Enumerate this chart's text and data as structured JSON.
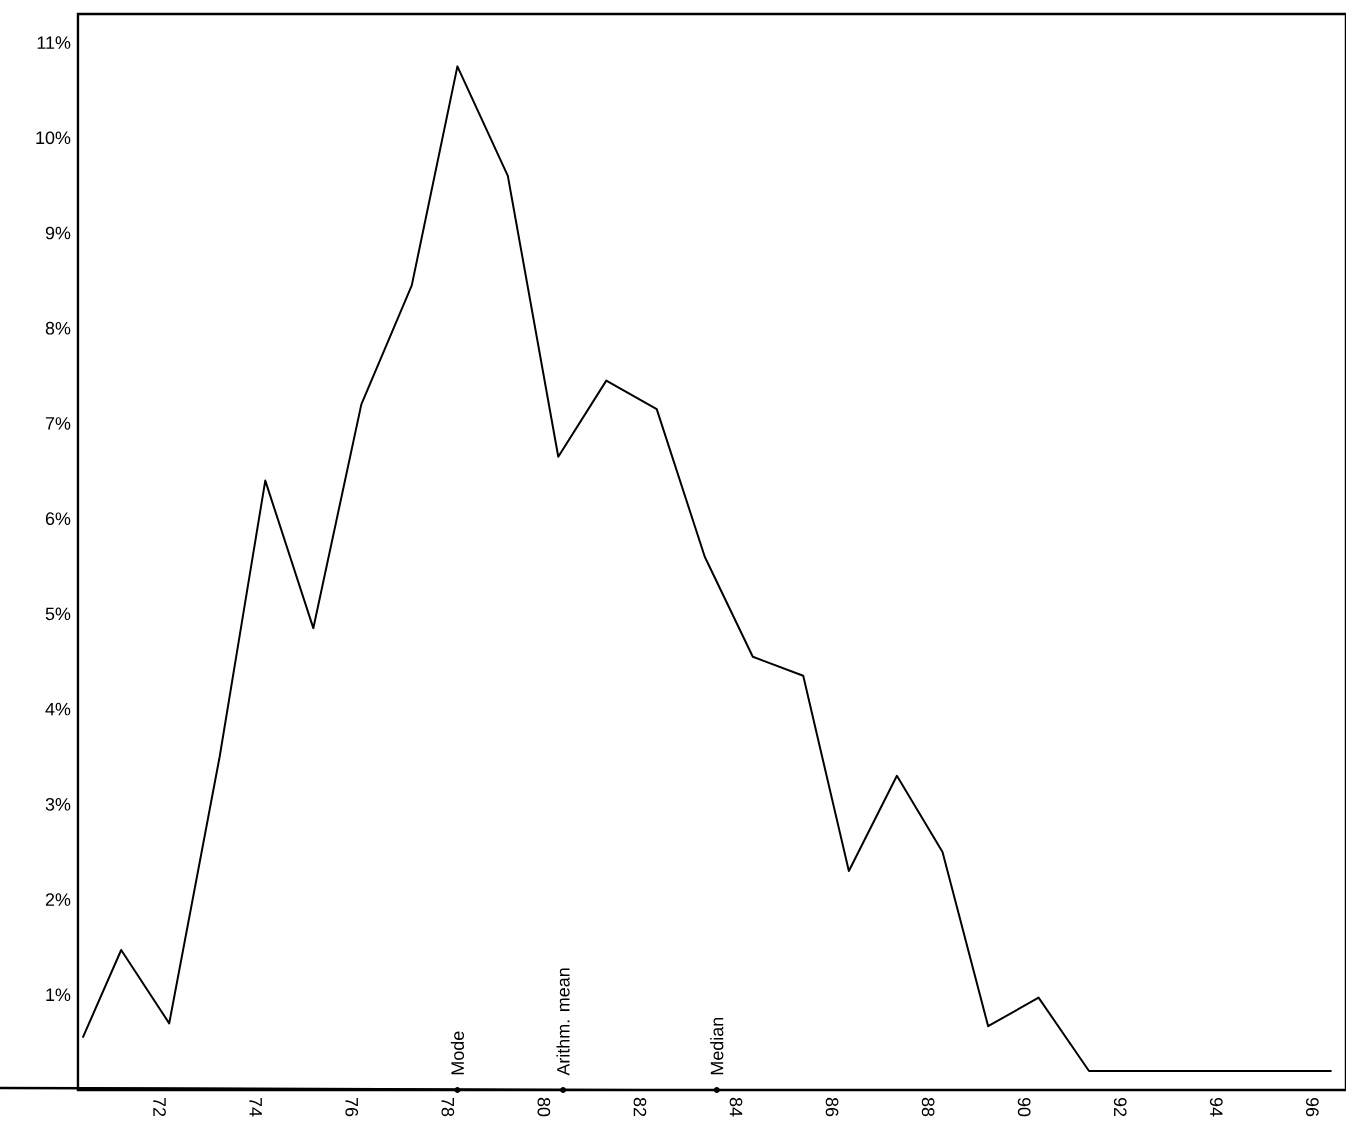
{
  "chart_data": {
    "type": "line",
    "color": "#000000",
    "x": [
      70.4,
      71.2,
      72.2,
      73.25,
      74.2,
      75.2,
      76.2,
      77.25,
      78.2,
      79.25,
      80.3,
      81.3,
      82.35,
      83.35,
      84.35,
      85.4,
      86.35,
      87.35,
      88.3,
      89.25,
      90.3,
      91.35,
      96.4
    ],
    "values": [
      0.55,
      1.47,
      0.7,
      3.5,
      6.4,
      4.85,
      7.2,
      8.45,
      10.75,
      9.6,
      6.65,
      7.45,
      7.15,
      5.6,
      4.55,
      4.35,
      2.3,
      3.3,
      2.5,
      0.67,
      0.97,
      0.2,
      0.2
    ],
    "xlim": [
      70.3,
      96.7
    ],
    "ylim": [
      0,
      11.3
    ],
    "xticks": [
      72,
      74,
      76,
      78,
      80,
      82,
      84,
      86,
      88,
      90,
      92,
      94,
      96
    ],
    "yticks": [
      {
        "value": 1,
        "label": "1%"
      },
      {
        "value": 2,
        "label": "2%"
      },
      {
        "value": 3,
        "label": "3%"
      },
      {
        "value": 4,
        "label": "4%"
      },
      {
        "value": 5,
        "label": "5%"
      },
      {
        "value": 6,
        "label": "6%"
      },
      {
        "value": 7,
        "label": "7%"
      },
      {
        "value": 8,
        "label": "8%"
      },
      {
        "value": 9,
        "label": "9%"
      },
      {
        "value": 10,
        "label": "10%"
      },
      {
        "value": 11,
        "label": "11%"
      }
    ],
    "annotations": [
      {
        "text": "Mode",
        "x": 78.2,
        "y": 0
      },
      {
        "text": "Arithm. mean",
        "x": 80.4,
        "y": 0
      },
      {
        "text": "Median",
        "x": 83.6,
        "y": 0
      }
    ]
  }
}
